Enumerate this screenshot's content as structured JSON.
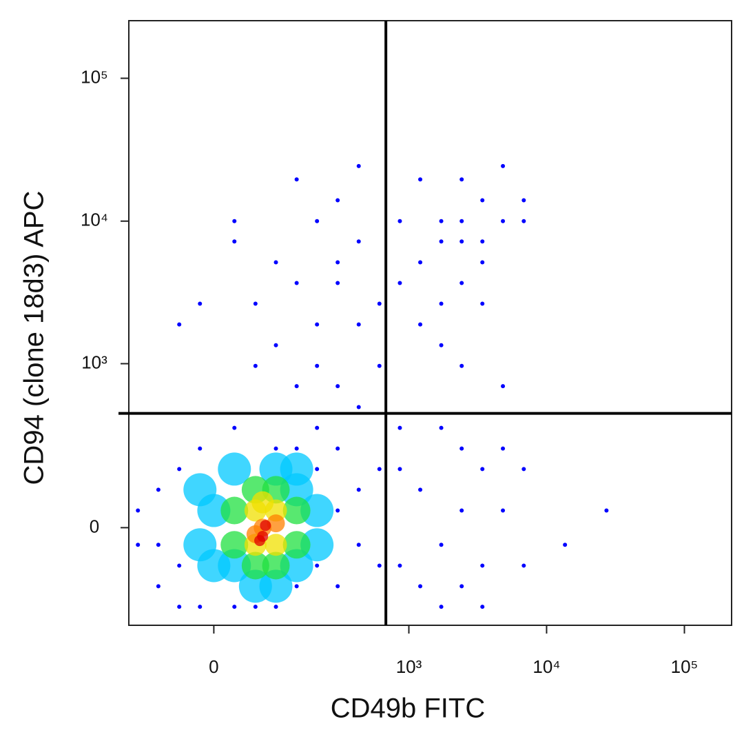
{
  "chart_data": {
    "type": "scatter",
    "x_label": "CD49b FITC",
    "y_label": "CD94 (clone 18d3) APC",
    "xscale": "biexponential",
    "yscale": "biexponential",
    "xlim": [
      -150,
      220000
    ],
    "ylim": [
      -330,
      253000
    ],
    "xticks": [
      0,
      {
        "value": 1000,
        "label": "10³"
      },
      {
        "value": 10000,
        "label": "10⁴"
      },
      {
        "value": 100000,
        "label": "10⁵"
      }
    ],
    "yticks": [
      0,
      {
        "value": 1000,
        "label": "10³"
      },
      {
        "value": 10000,
        "label": "10⁴"
      },
      {
        "value": 100000,
        "label": "10⁵"
      }
    ],
    "gates": {
      "x": 680,
      "y": 440
    },
    "gate_color": "#000000",
    "series": [
      {
        "color": "#0000ff",
        "marker_size": 3,
        "x": [
          -126,
          -82,
          -82,
          -47,
          -47,
          -18,
          -18,
          27,
          58,
          95,
          144,
          209,
          209,
          300,
          300,
          144,
          -126,
          -47,
          430,
          430,
          300,
          27,
          95,
          209,
          -82,
          610,
          610,
          -18,
          27,
          95,
          144,
          209,
          300,
          430,
          300,
          144,
          58,
          430,
          610,
          209,
          95,
          -47,
          300,
          430,
          58,
          209,
          610,
          144,
          27,
          430,
          300,
          1720,
          2420,
          3420,
          2420,
          1210,
          4820,
          3420,
          2420,
          1720,
          6830,
          1210,
          4820,
          860,
          3420,
          1720,
          2420,
          4820,
          6830,
          1210,
          860,
          3420,
          2420,
          1720,
          1210,
          1720,
          2420,
          3420,
          4820,
          860,
          1720,
          2420,
          3420,
          6830,
          860,
          1210,
          4820,
          13600,
          27200,
          1720,
          3420,
          2420,
          860,
          6830
        ],
        "y": [
          -40,
          -156,
          93,
          156,
          -236,
          236,
          -236,
          343,
          -236,
          236,
          -156,
          156,
          -93,
          40,
          -156,
          236,
          40,
          -93,
          93,
          -40,
          236,
          -236,
          -236,
          343,
          -40,
          -93,
          156,
          2640,
          7210,
          1350,
          3690,
          965,
          5150,
          1890,
          14000,
          19600,
          965,
          7210,
          2640,
          10000,
          5150,
          1890,
          692,
          489,
          2640,
          1890,
          965,
          692,
          10000,
          24300,
          3690,
          10000,
          7210,
          14000,
          19600,
          5150,
          10000,
          5150,
          3690,
          2640,
          14000,
          19600,
          24300,
          10000,
          2640,
          1350,
          965,
          692,
          10000,
          1890,
          3690,
          7210,
          10000,
          7210,
          93,
          -40,
          236,
          -93,
          40,
          156,
          343,
          -156,
          156,
          -93,
          -93,
          -156,
          236,
          -40,
          40,
          -236,
          -236,
          40,
          343,
          156
        ]
      },
      {
        "color": "#00c8ff",
        "marker_size": 24,
        "x": [
          0,
          27,
          27,
          95,
          144,
          209,
          209,
          -18,
          144,
          58,
          -18,
          95,
          144,
          0
        ],
        "y": [
          40,
          -93,
          156,
          156,
          -93,
          40,
          -40,
          -40,
          93,
          -156,
          93,
          -156,
          156,
          -93
        ]
      },
      {
        "color": "#20e040",
        "marker_size": 20,
        "x": [
          27,
          58,
          95,
          144,
          58,
          27,
          95,
          144
        ],
        "y": [
          40,
          93,
          93,
          -40,
          -93,
          -40,
          -93,
          40
        ]
      },
      {
        "color": "#f0e000",
        "marker_size": 16,
        "x": [
          58,
          95,
          58,
          95,
          70
        ],
        "y": [
          40,
          -40,
          -40,
          40,
          60
        ]
      },
      {
        "color": "#ff8000",
        "marker_size": 13,
        "x": [
          70,
          58,
          95
        ],
        "y": [
          0,
          -15,
          10
        ]
      },
      {
        "color": "#e00000",
        "marker_size": 8,
        "x": [
          70,
          75,
          65
        ],
        "y": [
          -20,
          5,
          -30
        ]
      }
    ]
  }
}
